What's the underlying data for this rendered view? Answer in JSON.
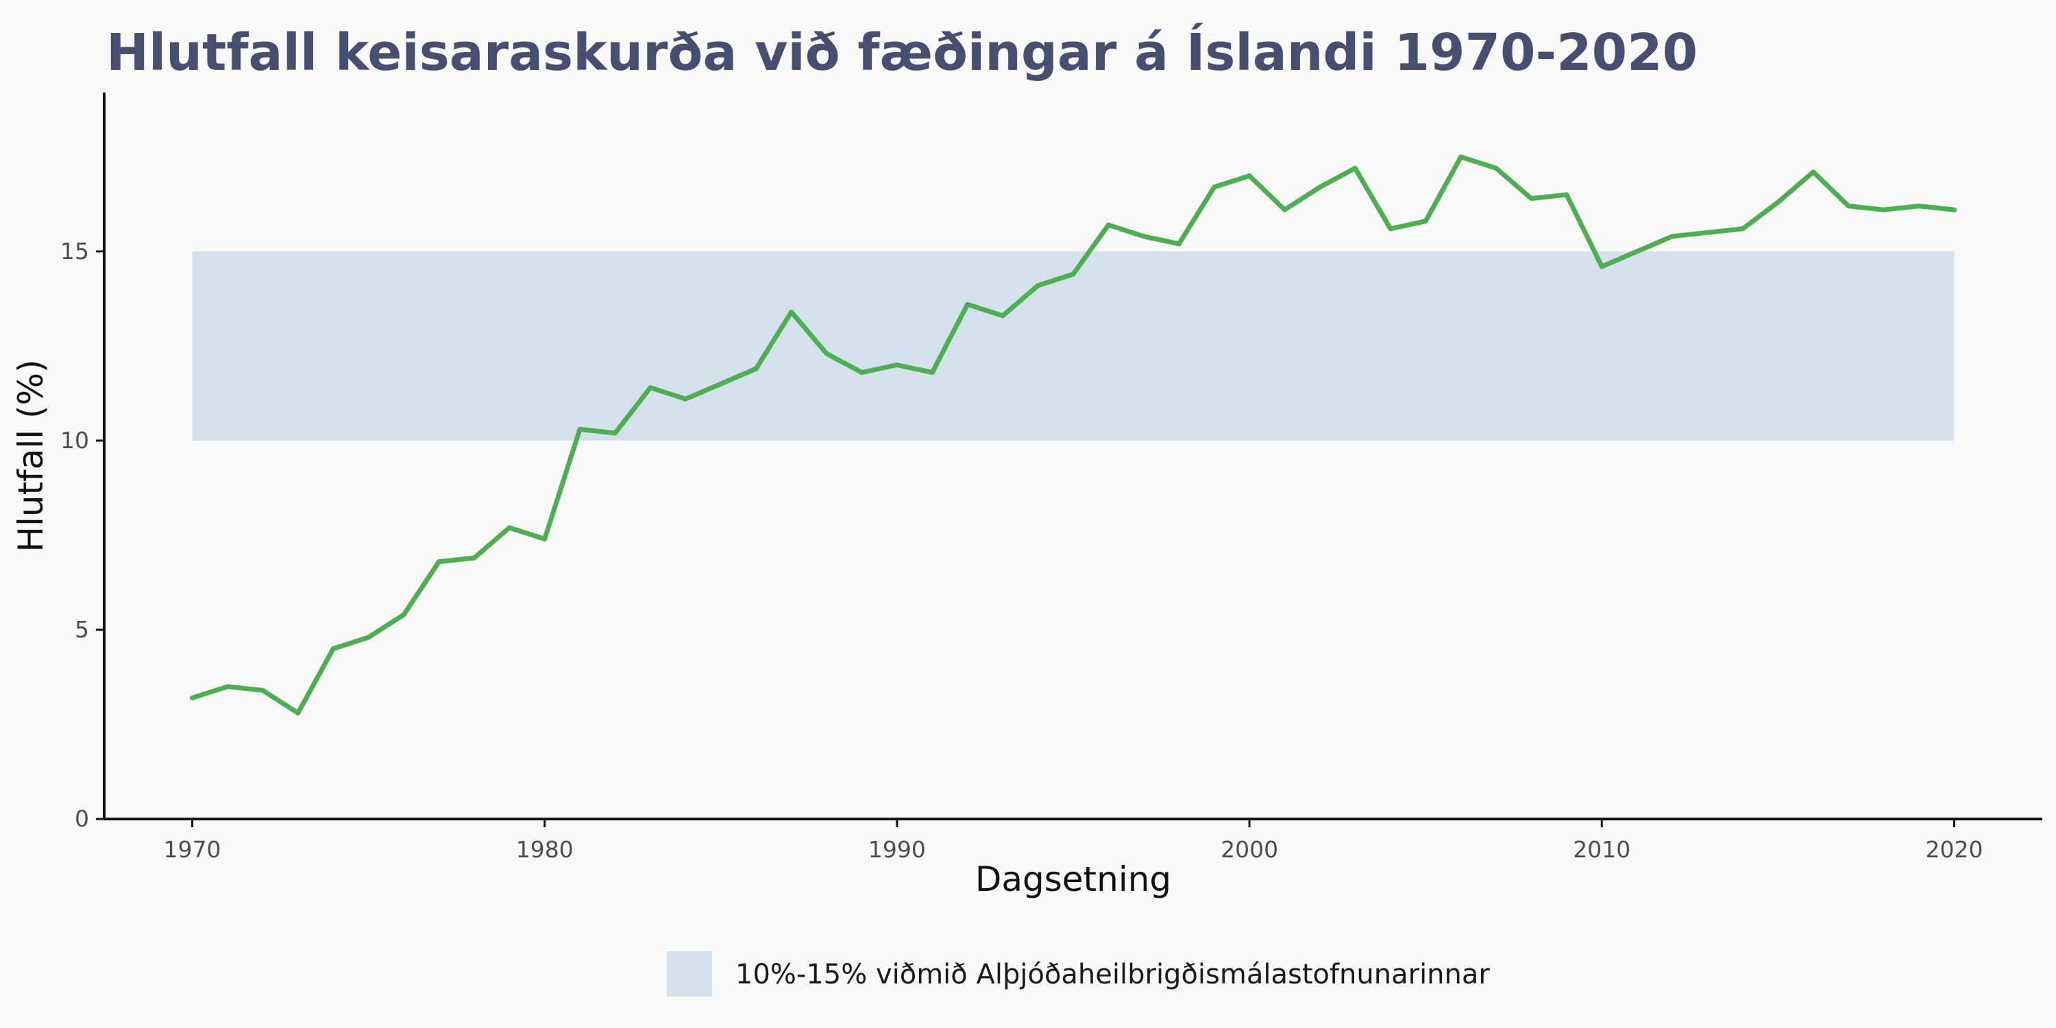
{
  "colors": {
    "title": "#474e70",
    "band": "#d4e0ec",
    "line": "#4caf50",
    "axis": "#111111",
    "background": "#f9f9f9"
  },
  "chart_data": {
    "type": "line",
    "title": "Hlutfall keisaraskurða við fæðingar á Íslandi 1970-2020",
    "xlabel": "Dagsetning",
    "ylabel": "Hlutfall (%)",
    "xlim": [
      1967.5,
      2022.5
    ],
    "ylim": [
      0,
      19.2
    ],
    "grid": false,
    "legend_position": "bottom",
    "x_ticks": [
      1970,
      1980,
      1990,
      2000,
      2010,
      2020
    ],
    "y_ticks": [
      0,
      5,
      10,
      15
    ],
    "band": {
      "label": "10%-15% viðmið Alþjóðaheilbrigðismálastofnunarinnar",
      "x_range": [
        1970,
        2020
      ],
      "y_range": [
        10,
        15
      ]
    },
    "series": [
      {
        "x": [
          1970,
          1971,
          1972,
          1973,
          1974,
          1975,
          1976,
          1977,
          1978,
          1979,
          1980,
          1981,
          1982,
          1983,
          1984,
          1985,
          1986,
          1987,
          1988,
          1989,
          1990,
          1991,
          1992,
          1993,
          1994,
          1995,
          1996,
          1997,
          1998,
          1999,
          2000,
          2001,
          2002,
          2003,
          2004,
          2005,
          2006,
          2007,
          2008,
          2009,
          2010,
          2011,
          2012,
          2013,
          2014,
          2015,
          2016,
          2017,
          2018,
          2019,
          2020
        ],
        "values": [
          3.2,
          3.5,
          3.4,
          2.8,
          4.5,
          4.8,
          5.4,
          6.8,
          6.9,
          7.7,
          7.4,
          10.3,
          10.2,
          11.4,
          11.1,
          11.5,
          11.9,
          13.4,
          12.3,
          11.8,
          12.0,
          11.8,
          13.6,
          13.3,
          14.1,
          14.4,
          15.7,
          15.4,
          15.2,
          16.7,
          17.0,
          16.1,
          16.7,
          17.2,
          15.6,
          15.8,
          17.5,
          17.2,
          16.4,
          16.5,
          14.6,
          15.0,
          15.4,
          15.5,
          15.6,
          16.3,
          17.1,
          16.2,
          16.1,
          16.2,
          16.1
        ]
      }
    ]
  }
}
